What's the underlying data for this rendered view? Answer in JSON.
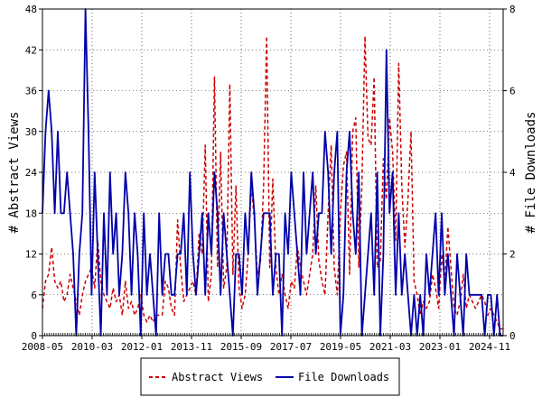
{
  "chart_data": {
    "type": "line",
    "ylabel_left": "# Abstract Views",
    "ylabel_right": "# File Downloads",
    "ylim_left": [
      0,
      48
    ],
    "ylim_right": [
      0,
      8
    ],
    "yticks_left": [
      "0",
      "6",
      "12",
      "18",
      "24",
      "30",
      "36",
      "42",
      "48"
    ],
    "yticks_right": [
      "0",
      "2",
      "4",
      "6",
      "8"
    ],
    "xlim": [
      "2008-05",
      "2025-05"
    ],
    "xticks": [
      "2008-05",
      "2010-03",
      "2012-01",
      "2013-11",
      "2015-09",
      "2017-07",
      "2019-05",
      "2021-03",
      "2023-01",
      "2024-11"
    ],
    "legend_position": "bottom-center",
    "series": [
      {
        "name": "Abstract Views",
        "axis": "left",
        "color": "#cc0000",
        "style": "dashed",
        "values": [
          4,
          8,
          9,
          13,
          8,
          7,
          8,
          5,
          6,
          9,
          7,
          5,
          3,
          6,
          8,
          9,
          10,
          7,
          14,
          8,
          6,
          5,
          4,
          7,
          5,
          6,
          3,
          8,
          4,
          5,
          3,
          4,
          6,
          3,
          2,
          3,
          2,
          3,
          3,
          3,
          8,
          7,
          4,
          3,
          17,
          10,
          5,
          6,
          7,
          8,
          6,
          15,
          12,
          28,
          5,
          9,
          38,
          10,
          27,
          7,
          10,
          37,
          9,
          22,
          7,
          4,
          6,
          12,
          22,
          17,
          9,
          11,
          22,
          44,
          10,
          23,
          10,
          6,
          9,
          6,
          4,
          8,
          7,
          13,
          10,
          8,
          6,
          9,
          12,
          22,
          11,
          8,
          6,
          18,
          28,
          10,
          6,
          18,
          25,
          27,
          9,
          30,
          32,
          10,
          22,
          44,
          29,
          28,
          38,
          10,
          11,
          26,
          20,
          32,
          27,
          14,
          40,
          22,
          13,
          20,
          30,
          8,
          6,
          3,
          5,
          4,
          5,
          9,
          7,
          4,
          12,
          8,
          16,
          10,
          4,
          3,
          5,
          9,
          4,
          6,
          5,
          4,
          5,
          6,
          5,
          3,
          4,
          3,
          2,
          1,
          1
        ]
      },
      {
        "name": "File Downloads",
        "axis": "right",
        "color": "#0000aa",
        "style": "solid",
        "values": [
          3,
          5,
          6,
          5,
          3,
          5,
          3,
          3,
          4,
          3,
          2,
          0,
          2,
          3,
          8,
          5,
          1,
          4,
          2,
          0,
          3,
          1,
          4,
          2,
          3,
          1,
          2,
          4,
          3,
          1,
          3,
          2,
          0,
          3,
          1,
          2,
          1,
          0,
          3,
          1,
          2,
          2,
          1,
          1,
          2,
          2,
          3,
          1,
          4,
          2,
          1,
          2,
          3,
          1,
          3,
          2,
          4,
          3,
          1,
          3,
          2,
          1,
          0,
          2,
          2,
          1,
          3,
          2,
          4,
          3,
          1,
          2,
          3,
          3,
          3,
          1,
          2,
          2,
          0,
          3,
          2,
          4,
          3,
          2,
          1,
          4,
          2,
          3,
          4,
          2,
          3,
          3,
          5,
          4,
          2,
          4,
          5,
          0,
          1,
          4,
          5,
          3,
          2,
          4,
          0,
          1,
          2,
          3,
          1,
          4,
          0,
          2,
          7,
          3,
          4,
          1,
          3,
          1,
          2,
          1,
          0,
          1,
          0,
          1,
          0,
          2,
          1,
          2,
          3,
          1,
          3,
          1,
          2,
          1,
          0,
          2,
          1,
          0,
          2,
          1,
          1,
          1,
          1,
          1,
          0,
          1,
          1,
          0,
          1,
          0,
          0
        ]
      }
    ]
  }
}
